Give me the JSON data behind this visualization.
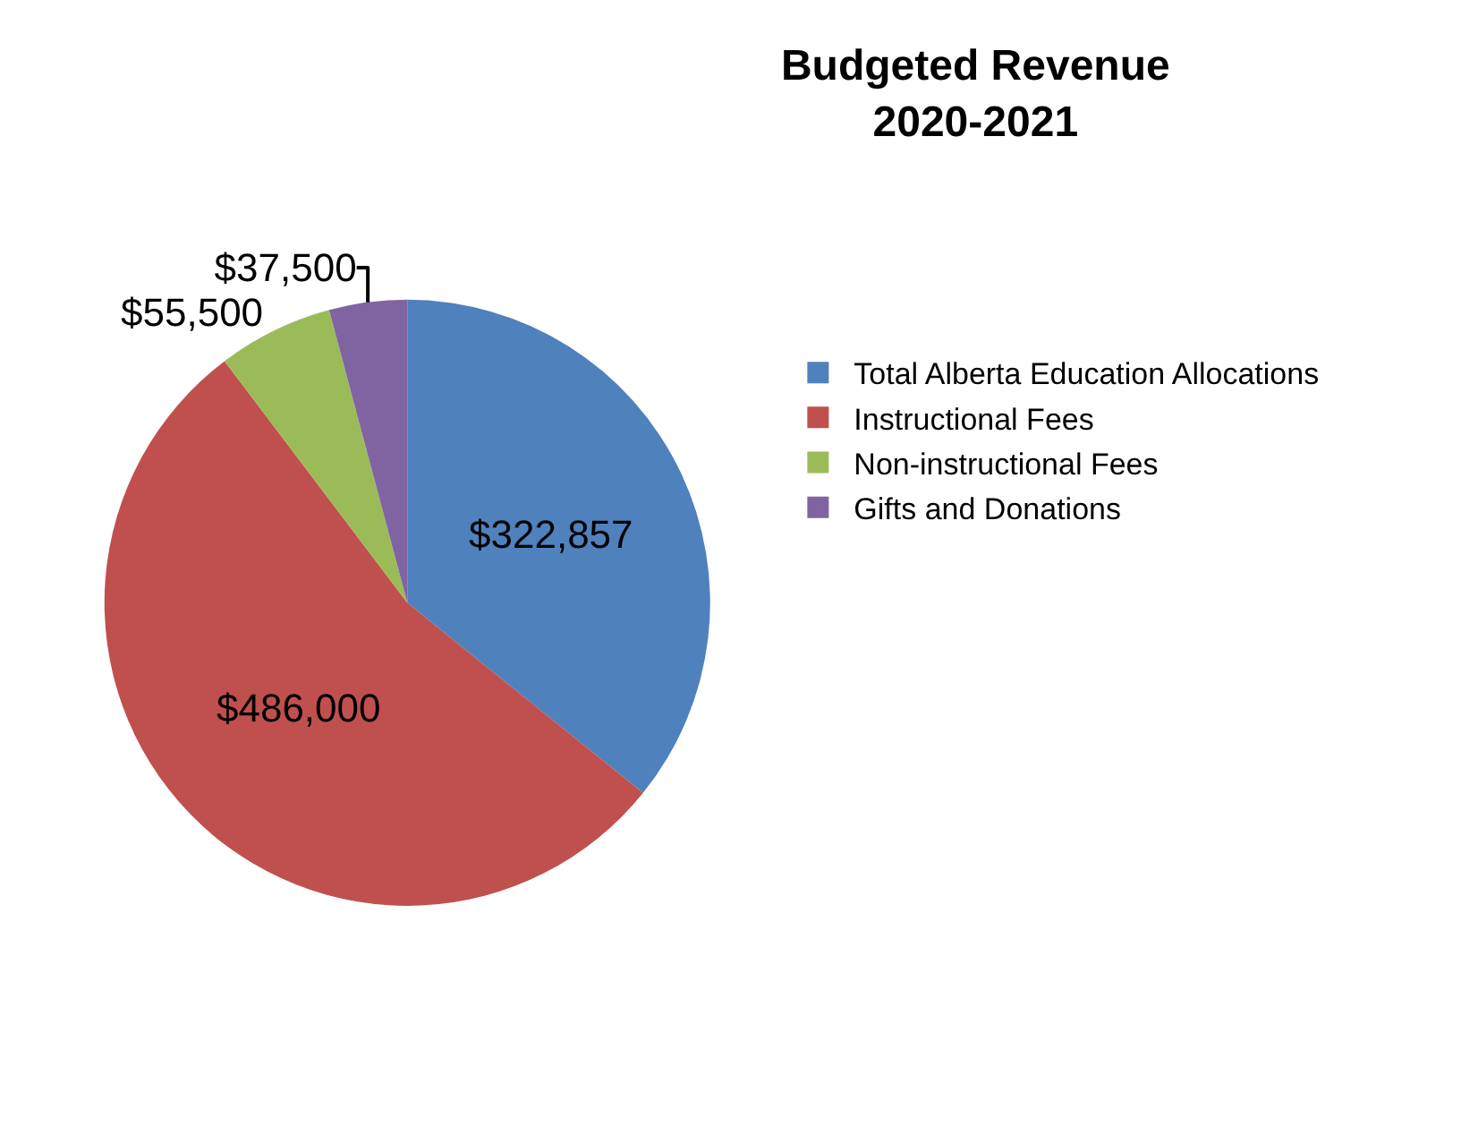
{
  "chart_data": {
    "type": "pie",
    "title": "Budgeted Revenue\n2020-2021",
    "categories": [
      "Total Alberta Education Allocations",
      "Instructional Fees",
      "Non-instructional Fees",
      "Gifts and Donations"
    ],
    "values": [
      322857,
      486000,
      55500,
      37500
    ],
    "value_labels": [
      "$322,857",
      "$486,000",
      "$55,500",
      "$37,500"
    ],
    "colors": [
      "#4f81bd",
      "#c0504d",
      "#9bbb59",
      "#8064a2"
    ],
    "legend": "right"
  }
}
